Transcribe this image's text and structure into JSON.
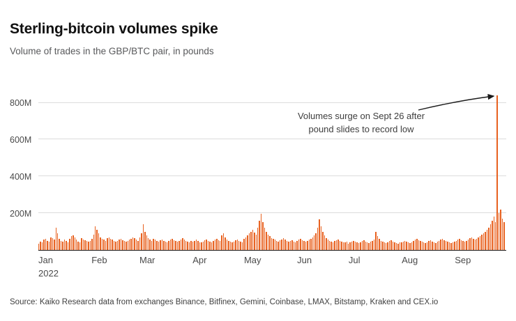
{
  "header": {
    "title": "Sterling-bitcoin volumes spike",
    "subtitle": "Volume of trades in the GBP/BTC pair, in pounds"
  },
  "annotation": {
    "line1": "Volumes surge on Sept 26 after",
    "line2": "pound slides to record low"
  },
  "source": "Source: Kaiko Research data from exchanges Binance, Bitfinex, Gemini, Coinbase, LMAX, Bitstamp, Kraken and CEX.io",
  "chart_data": {
    "type": "bar",
    "title": "Sterling-bitcoin volumes spike",
    "xlabel": "",
    "ylabel": "Volume of trades in the GBP/BTC pair, in pounds",
    "unit": "millions of pounds",
    "ylim": [
      0,
      870
    ],
    "yticks": [
      200,
      400,
      600,
      800
    ],
    "ytick_labels": [
      "200M",
      "400M",
      "600M",
      "800M"
    ],
    "grid": "horizontal",
    "bar_color": "#e8611f",
    "peak_note": "Spike on Sept 26, 2022 reaches approx 840M",
    "x_months": [
      {
        "label": "Jan",
        "sub": "2022",
        "index": 0
      },
      {
        "label": "Feb",
        "sub": "",
        "index": 31
      },
      {
        "label": "Mar",
        "sub": "",
        "index": 59
      },
      {
        "label": "Apr",
        "sub": "",
        "index": 90
      },
      {
        "label": "May",
        "sub": "",
        "index": 120
      },
      {
        "label": "Jun",
        "sub": "",
        "index": 151
      },
      {
        "label": "Jul",
        "sub": "",
        "index": 181
      },
      {
        "label": "Aug",
        "sub": "",
        "index": 212
      },
      {
        "label": "Sep",
        "sub": "",
        "index": 243
      }
    ],
    "values": [
      35,
      45,
      40,
      55,
      60,
      50,
      45,
      70,
      65,
      55,
      120,
      90,
      60,
      50,
      45,
      55,
      48,
      42,
      60,
      75,
      80,
      70,
      55,
      45,
      40,
      65,
      58,
      52,
      48,
      44,
      50,
      60,
      85,
      130,
      110,
      90,
      70,
      60,
      55,
      50,
      65,
      70,
      60,
      55,
      50,
      45,
      48,
      55,
      60,
      52,
      48,
      44,
      50,
      56,
      60,
      70,
      65,
      55,
      50,
      70,
      90,
      140,
      100,
      80,
      65,
      55,
      50,
      60,
      55,
      48,
      45,
      52,
      58,
      50,
      46,
      42,
      48,
      55,
      60,
      52,
      48,
      45,
      50,
      58,
      64,
      55,
      50,
      46,
      42,
      48,
      45,
      50,
      55,
      48,
      42,
      40,
      46,
      52,
      58,
      50,
      45,
      42,
      48,
      55,
      60,
      52,
      48,
      80,
      90,
      70,
      55,
      48,
      44,
      40,
      46,
      52,
      58,
      50,
      45,
      42,
      60,
      70,
      80,
      90,
      100,
      110,
      95,
      85,
      120,
      160,
      195,
      150,
      120,
      100,
      85,
      75,
      65,
      60,
      55,
      50,
      46,
      52,
      58,
      64,
      55,
      50,
      45,
      48,
      52,
      46,
      42,
      50,
      55,
      60,
      52,
      48,
      44,
      50,
      56,
      60,
      70,
      80,
      90,
      120,
      165,
      130,
      100,
      80,
      65,
      55,
      50,
      46,
      42,
      48,
      52,
      56,
      50,
      46,
      42,
      40,
      44,
      35,
      40,
      45,
      50,
      44,
      40,
      36,
      42,
      48,
      52,
      46,
      42,
      38,
      44,
      50,
      55,
      100,
      75,
      60,
      50,
      44,
      40,
      36,
      42,
      48,
      52,
      46,
      42,
      38,
      35,
      40,
      40,
      45,
      50,
      44,
      40,
      36,
      42,
      48,
      55,
      60,
      52,
      48,
      44,
      40,
      36,
      42,
      48,
      52,
      46,
      42,
      38,
      44,
      50,
      56,
      60,
      52,
      48,
      44,
      40,
      36,
      42,
      44,
      50,
      56,
      60,
      52,
      48,
      44,
      50,
      58,
      64,
      70,
      62,
      55,
      60,
      68,
      75,
      82,
      90,
      100,
      110,
      120,
      140,
      160,
      180,
      150,
      840,
      200,
      220,
      170,
      150
    ]
  }
}
